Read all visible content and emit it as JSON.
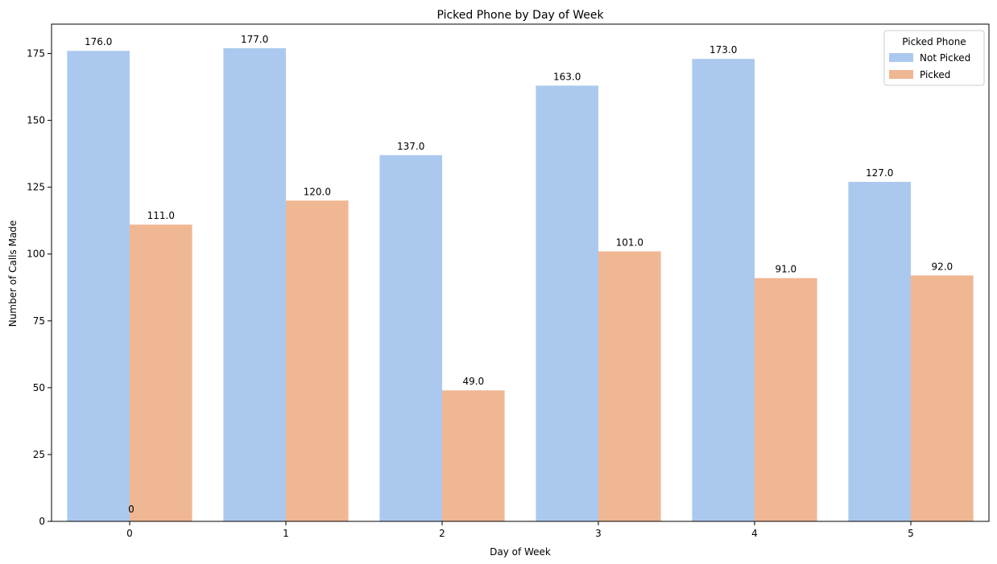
{
  "chart_data": {
    "type": "bar",
    "title": "Picked Phone by Day of Week",
    "xlabel": "Day of Week",
    "ylabel": "Number of Calls Made",
    "categories": [
      "0",
      "1",
      "2",
      "3",
      "4",
      "5"
    ],
    "series": [
      {
        "name": "Not Picked",
        "color": "#abc9ee",
        "values": [
          176,
          177,
          137,
          163,
          173,
          127
        ]
      },
      {
        "name": "Picked",
        "color": "#f0b793",
        "values": [
          111,
          120,
          49,
          101,
          91,
          92
        ]
      }
    ],
    "value_labels": [
      [
        "176.0",
        "177.0",
        "137.0",
        "163.0",
        "173.0",
        "127.0"
      ],
      [
        "111.0",
        "120.0",
        "49.0",
        "101.0",
        "91.0",
        "92.0"
      ]
    ],
    "extra_annotation": "0",
    "ylim": [
      0,
      186
    ],
    "yticks": [
      0,
      25,
      50,
      75,
      100,
      125,
      150,
      175
    ],
    "grid": false,
    "legend": {
      "title": "Picked Phone",
      "position": "top-right"
    }
  }
}
